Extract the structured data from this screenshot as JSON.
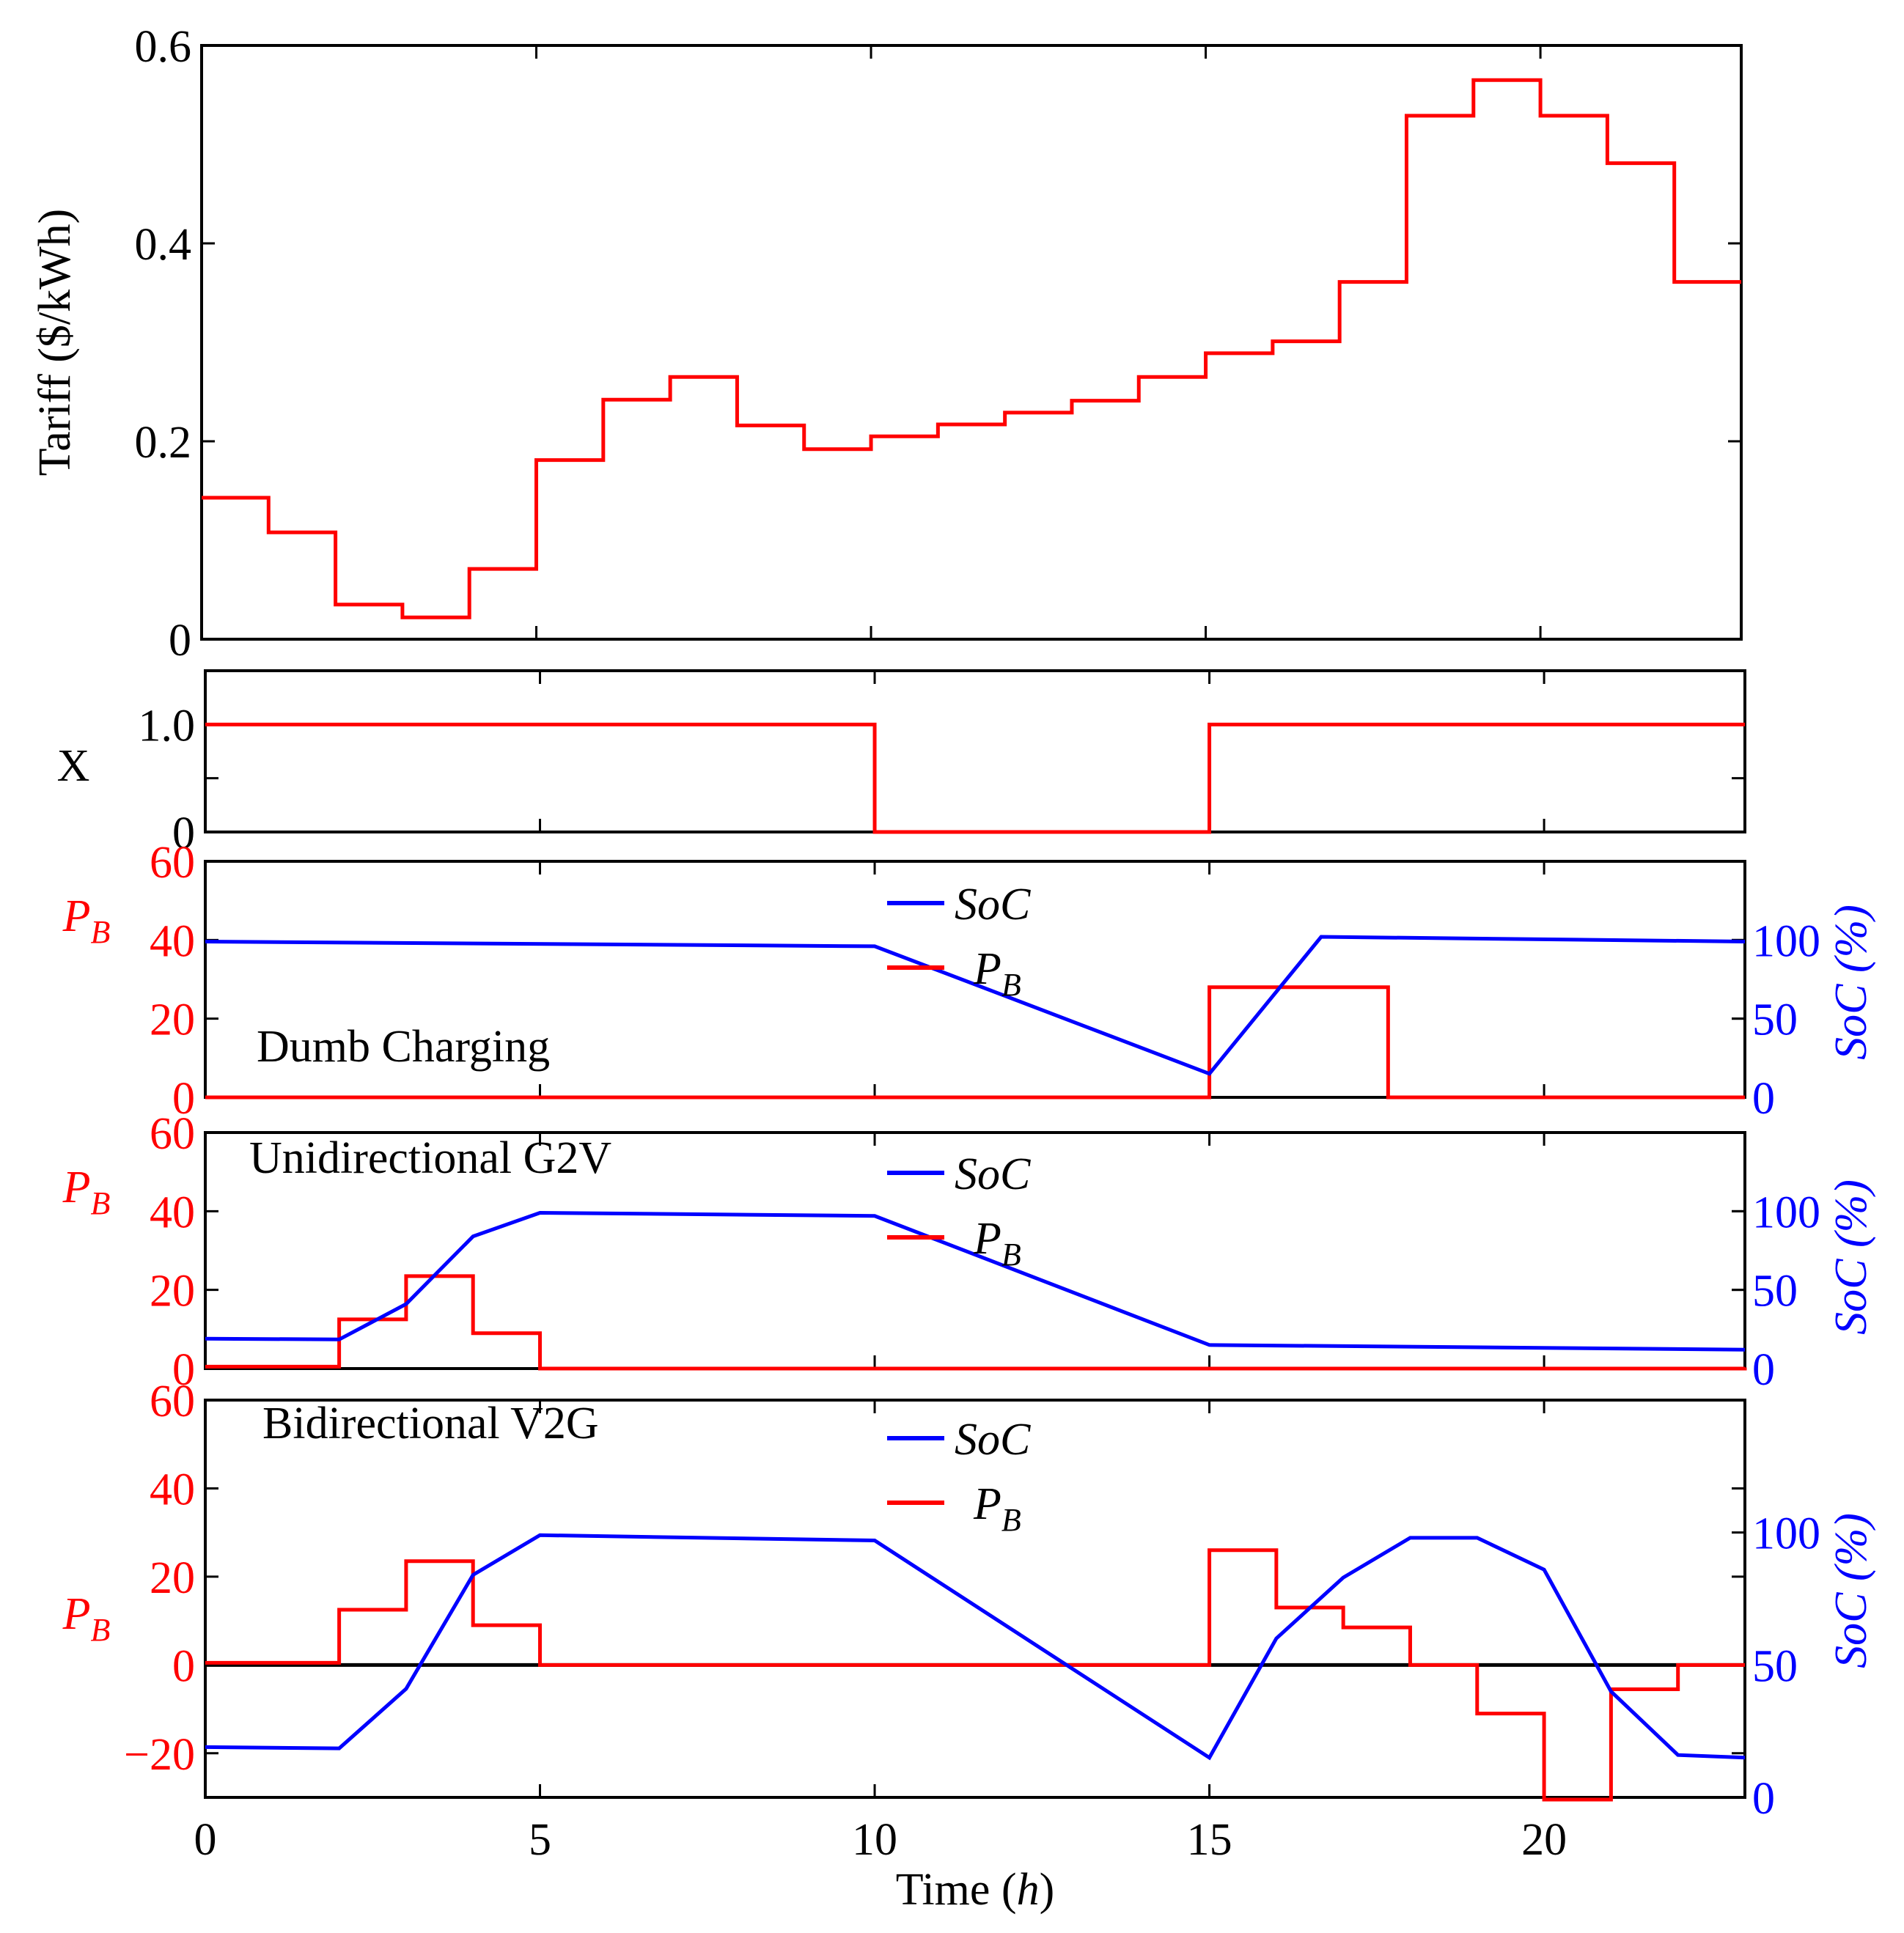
{
  "chart_data": {
    "type": "line",
    "x_range": [
      0,
      23
    ],
    "xlabel_main": "Time (",
    "xlabel_var": "h",
    "xlabel_close": ")",
    "x_ticks": [
      0,
      5,
      10,
      15,
      20
    ],
    "x_tick_labels": [
      "0",
      "5",
      "10",
      "15",
      "20"
    ],
    "colors": {
      "tariff": "#ff0000",
      "power": "#ff0000",
      "soc": "#0000ff",
      "axis": "#000000"
    },
    "panels": [
      {
        "id": "tariff",
        "ylabel": "Tariff ($/kWh)",
        "ylim": [
          0,
          0.6
        ],
        "y_ticks": [
          0,
          0.2,
          0.4,
          0.6
        ],
        "y_tick_labels": [
          "0",
          "0.2",
          "0.4",
          "0.6"
        ],
        "series": [
          {
            "name": "Tariff",
            "kind": "step",
            "axis": "left",
            "x": [
              0,
              1,
              2,
              3,
              4,
              5,
              6,
              7,
              8,
              9,
              10,
              11,
              12,
              13,
              14,
              15,
              16,
              17,
              18,
              19,
              20,
              21,
              22,
              23
            ],
            "values": [
              0.143,
              0.108,
              0.035,
              0.022,
              0.071,
              0.181,
              0.242,
              0.265,
              0.216,
              0.192,
              0.205,
              0.217,
              0.229,
              0.241,
              0.265,
              0.289,
              0.301,
              0.361,
              0.529,
              0.565,
              0.529,
              0.481,
              0.361,
              0.361
            ]
          }
        ]
      },
      {
        "id": "x-status",
        "ylabel": "X",
        "ylim": [
          0,
          1.5
        ],
        "y_ticks": [
          0,
          0.5,
          1.0
        ],
        "y_tick_labels": [
          "0",
          "",
          "1.0"
        ],
        "series": [
          {
            "name": "X",
            "kind": "step",
            "axis": "left",
            "x": [
              0,
              10,
              15,
              23
            ],
            "values": [
              1,
              0,
              1,
              1
            ]
          }
        ]
      },
      {
        "id": "dumb",
        "annotation": "Dumb Charging",
        "ylabel_left_main": "P",
        "ylabel_left_sub": "B",
        "ylabel_right": "SoC (%)",
        "ylim": [
          0,
          60
        ],
        "y_ticks": [
          0,
          20,
          40,
          60
        ],
        "y_tick_labels": [
          "0",
          "20",
          "40",
          "60"
        ],
        "y2lim": [
          0,
          150
        ],
        "y2_ticks": [
          0,
          50,
          100
        ],
        "y2_tick_labels": [
          "0",
          "50",
          "100"
        ],
        "legend": {
          "soc": "SoC",
          "pb_main": "P",
          "pb_sub": "B"
        },
        "series": [
          {
            "name": "PB",
            "kind": "step",
            "axis": "left",
            "x": [
              0,
              15,
              17.67,
              23
            ],
            "values": [
              0,
              28,
              0,
              0
            ]
          },
          {
            "name": "SoC",
            "kind": "line",
            "axis": "right",
            "x": [
              0,
              10,
              15,
              16.67,
              23
            ],
            "values": [
              99,
              96,
              15,
              102,
              99
            ]
          }
        ]
      },
      {
        "id": "g2v",
        "annotation": "Unidirectional G2V",
        "ylabel_left_main": "P",
        "ylabel_left_sub": "B",
        "ylabel_right": "SoC (%)",
        "ylim": [
          0,
          60
        ],
        "y_ticks": [
          0,
          20,
          40,
          60
        ],
        "y_tick_labels": [
          "0",
          "20",
          "40",
          "60"
        ],
        "y2lim": [
          0,
          150
        ],
        "y2_ticks": [
          0,
          50,
          100
        ],
        "y2_tick_labels": [
          "0",
          "50",
          "100"
        ],
        "legend": {
          "soc": "SoC",
          "pb_main": "P",
          "pb_sub": "B"
        },
        "series": [
          {
            "name": "PB",
            "kind": "step",
            "axis": "left",
            "x": [
              0,
              2,
              3,
              4,
              5,
              23
            ],
            "values": [
              0.5,
              12.5,
              23.5,
              9,
              0,
              0.3
            ]
          },
          {
            "name": "SoC",
            "kind": "line",
            "axis": "right",
            "x": [
              0,
              2,
              3,
              4,
              5,
              10,
              15,
              23
            ],
            "values": [
              19,
              18.5,
              41,
              84,
              99,
              97,
              15,
              12
            ]
          }
        ]
      },
      {
        "id": "v2g",
        "annotation": "Bidirectional V2G",
        "ylabel_left_main": "P",
        "ylabel_left_sub": "B",
        "ylabel_right": "SoC (%)",
        "ylim": [
          -30,
          60
        ],
        "y_ticks": [
          -20,
          0,
          20,
          40,
          60
        ],
        "y_tick_labels": [
          "−20",
          "0",
          "20",
          "40",
          "60"
        ],
        "y2lim": [
          0,
          150
        ],
        "y2_ticks": [
          0,
          50,
          100
        ],
        "y2_tick_labels": [
          "0",
          "50",
          "100"
        ],
        "legend": {
          "soc": "SoC",
          "pb_main": "P",
          "pb_sub": "B"
        },
        "series": [
          {
            "name": "PB",
            "kind": "step",
            "axis": "left",
            "x": [
              0,
              2,
              3,
              4,
              5,
              15,
              16,
              17,
              18,
              19,
              20,
              21,
              22,
              23
            ],
            "values": [
              0.5,
              12.5,
              23.5,
              9,
              0,
              26,
              13,
              8.5,
              0,
              -11,
              -30.5,
              -5.5,
              0,
              0
            ]
          },
          {
            "name": "SoC",
            "kind": "line",
            "axis": "right",
            "x": [
              0,
              2,
              3,
              4,
              5,
              10,
              15,
              16,
              17,
              18,
              19,
              20,
              21,
              22,
              23
            ],
            "values": [
              19,
              18.5,
              41,
              84,
              99,
              97,
              15,
              60,
              83,
              98,
              98,
              86,
              40,
              16,
              15
            ]
          }
        ]
      }
    ]
  }
}
